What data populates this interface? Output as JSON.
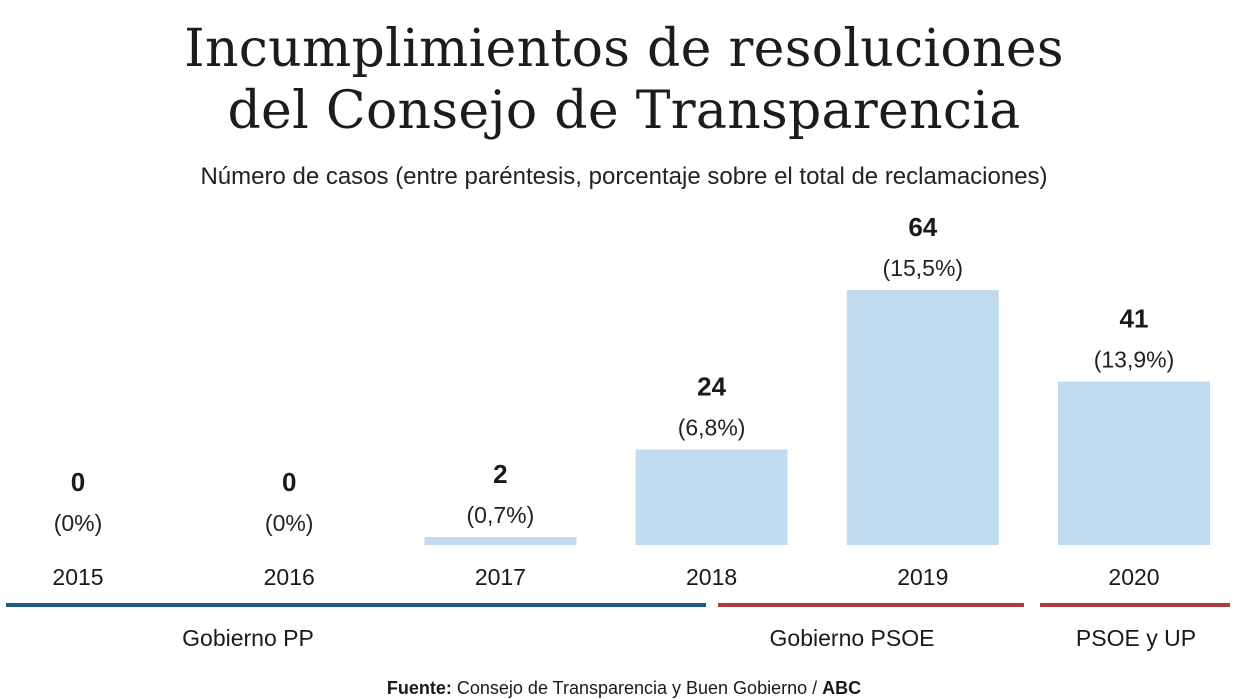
{
  "title_line1": "Incumplimientos de resoluciones",
  "title_line2": "del Consejo de Transparencia",
  "subtitle": "Número de casos (entre paréntesis, porcentaje sobre el total de reclamaciones)",
  "chart_data": {
    "type": "bar",
    "categories": [
      "2015",
      "2016",
      "2017",
      "2018",
      "2019",
      "2020"
    ],
    "values": [
      0,
      0,
      2,
      24,
      64,
      41
    ],
    "value_labels": [
      "0",
      "0",
      "2",
      "24",
      "64",
      "41"
    ],
    "percent_labels": [
      "(0%)",
      "(0%)",
      "(0,7%)",
      "(6,8%)",
      "(15,5%)",
      "(13,9%)"
    ],
    "ylim": [
      0,
      64
    ],
    "grid": false,
    "bar_color": "#c0daee",
    "groups": [
      {
        "label": "Gobierno PP",
        "from": "2015",
        "to": "2018",
        "color": "#1f5b86"
      },
      {
        "label": "Gobierno PSOE",
        "from": "2018",
        "to": "2019",
        "color": "#b23a3f"
      },
      {
        "label": "PSOE y UP",
        "from": "2020",
        "to": "2020",
        "color": "#b23a3f"
      }
    ]
  },
  "source": {
    "label": "Fuente:",
    "text": "Consejo de Transparencia y Buen Gobierno / ",
    "brand": "ABC"
  }
}
